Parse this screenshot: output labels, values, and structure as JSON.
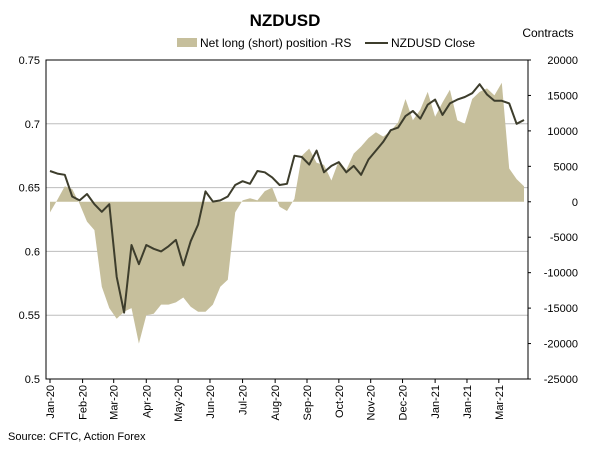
{
  "chart_data": {
    "type": "area+line",
    "title": "NZDUSD",
    "right_axis_title": "Contracts",
    "source": "Source: CFTC, Action Forex",
    "legend": {
      "placement": "top-center",
      "items": [
        {
          "label": "Net long (short) position -RS",
          "kind": "area",
          "color": "#c6bf9c"
        },
        {
          "label": "NZDUSD Close",
          "kind": "line",
          "color": "#3d3d2c"
        }
      ]
    },
    "left_axis": {
      "min": 0.5,
      "max": 0.75,
      "ticks": [
        "0.5",
        "0.55",
        "0.6",
        "0.65",
        "0.7",
        "0.75"
      ]
    },
    "right_axis": {
      "min": -25000,
      "max": 20000,
      "ticks": [
        "-25000",
        "-20000",
        "-15000",
        "-10000",
        "-5000",
        "0",
        "5000",
        "10000",
        "15000",
        "20000"
      ]
    },
    "x_tick_labels": [
      "Jan-20",
      "Feb-20",
      "Mar-20",
      "Apr-20",
      "May-20",
      "Jun-20",
      "Jul-20",
      "Aug-20",
      "Sep-20",
      "Oct-20",
      "Nov-20",
      "Dec-20",
      "Jan-21",
      "Jan-21",
      "Mar-21"
    ],
    "x_tick_weeks": [
      0,
      4.4,
      8.6,
      13,
      17.3,
      21.6,
      26,
      30.4,
      34.7,
      39,
      43.3,
      47.6,
      52,
      56.3,
      60.6
    ],
    "grid": "horizontal",
    "series": [
      {
        "name": "Net long (short) position -RS",
        "axis": "right",
        "kind": "area",
        "values": [
          -1500,
          300,
          2200,
          1800,
          -300,
          -2800,
          -4000,
          -12000,
          -15000,
          -16500,
          -15500,
          -15000,
          -20000,
          -16000,
          -15800,
          -14500,
          -14500,
          -14200,
          -13500,
          -14800,
          -15500,
          -15500,
          -14500,
          -12000,
          -11000,
          -1500,
          200,
          500,
          200,
          1500,
          2000,
          -700,
          -1300,
          400,
          6500,
          7500,
          5500,
          5200,
          3000,
          5800,
          4500,
          6800,
          7800,
          9000,
          9800,
          9200,
          10000,
          11200,
          14500,
          11500,
          13000,
          15500,
          12000,
          14000,
          15800,
          11500,
          11000,
          14500,
          15500,
          16000,
          15000,
          16800,
          4700,
          3200,
          2200
        ]
      },
      {
        "name": "NZDUSD Close",
        "axis": "left",
        "kind": "line",
        "values": [
          0.663,
          0.661,
          0.66,
          0.643,
          0.64,
          0.645,
          0.637,
          0.631,
          0.637,
          0.58,
          0.552,
          0.605,
          0.59,
          0.605,
          0.602,
          0.6,
          0.604,
          0.609,
          0.589,
          0.608,
          0.621,
          0.647,
          0.639,
          0.64,
          0.643,
          0.652,
          0.655,
          0.653,
          0.663,
          0.662,
          0.658,
          0.652,
          0.653,
          0.675,
          0.674,
          0.668,
          0.679,
          0.662,
          0.667,
          0.67,
          0.662,
          0.667,
          0.66,
          0.672,
          0.679,
          0.686,
          0.695,
          0.697,
          0.706,
          0.71,
          0.704,
          0.715,
          0.719,
          0.707,
          0.716,
          0.719,
          0.721,
          0.724,
          0.731,
          0.723,
          0.718,
          0.718,
          0.716,
          0.7,
          0.703
        ]
      }
    ]
  }
}
